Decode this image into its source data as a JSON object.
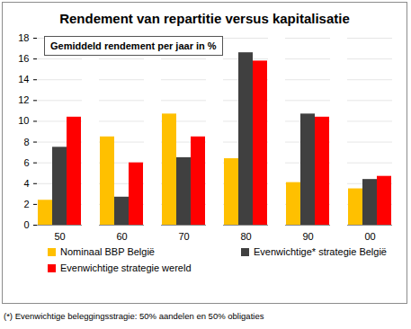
{
  "chart_data": {
    "type": "bar",
    "title": "Rendement van repartitie versus kapitalisatie",
    "annotations": [
      "Gemiddeld rendement per jaar in %"
    ],
    "footnote": "(*) Evenwichtige beleggingsstragie: 50% aandelen en 50% obligaties",
    "categories": [
      "50",
      "60",
      "70",
      "80",
      "90",
      "00"
    ],
    "series": [
      {
        "name": "Nominaal BBP België",
        "color": "#ffc000",
        "values": [
          2.4,
          8.5,
          10.7,
          6.4,
          4.1,
          3.5
        ]
      },
      {
        "name": "Evenwichtige* strategie België",
        "color": "#404040",
        "values": [
          7.5,
          2.7,
          6.5,
          16.6,
          10.7,
          4.4
        ]
      },
      {
        "name": "Evenwichtige strategie wereld",
        "color": "#ff0000",
        "values": [
          10.4,
          6.0,
          8.5,
          15.8,
          10.4,
          4.7
        ]
      }
    ],
    "ylim": [
      0,
      18
    ],
    "yticks": [
      0,
      2,
      4,
      6,
      8,
      10,
      12,
      14,
      16,
      18
    ],
    "grid": true,
    "legend": "bottom"
  }
}
